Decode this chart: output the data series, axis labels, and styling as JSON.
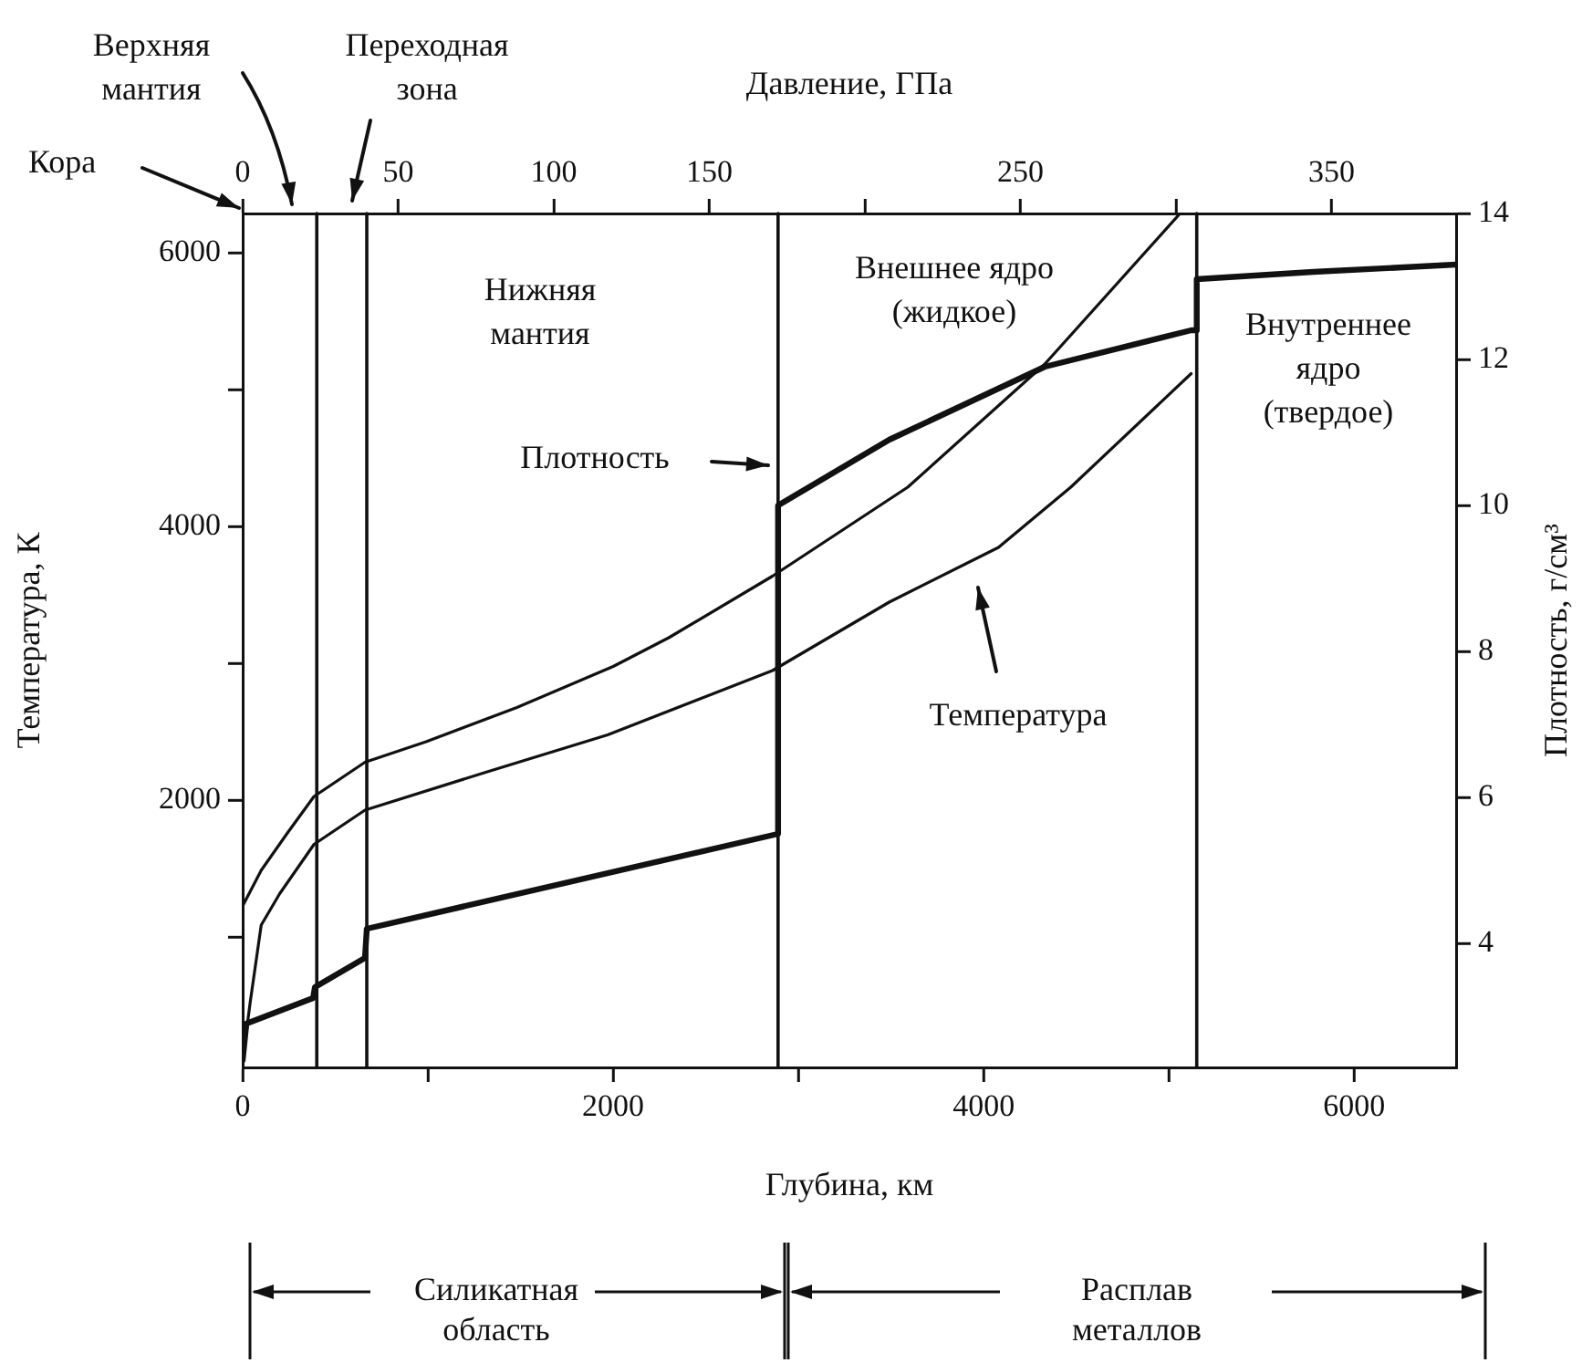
{
  "chart_data": {
    "type": "line",
    "xlabel": "Глубина, км",
    "ylabel": "Температура, К",
    "y2label": "Плотность, г/см³",
    "x2label": "Давление, ГПа",
    "xlim": [
      0,
      6550
    ],
    "xticks": [
      0,
      {
        "value": 1000,
        "label": null
      },
      2000,
      {
        "value": 3000,
        "label": null
      },
      4000,
      {
        "value": 5000,
        "label": null
      },
      6000
    ],
    "x2lim": [
      0,
      390
    ],
    "x2ticks": [
      0,
      50,
      100,
      150,
      {
        "value": 200,
        "label": null
      },
      250,
      {
        "value": 300,
        "label": null
      },
      350
    ],
    "ylim": [
      50,
      6290
    ],
    "yticks": [
      {
        "value": 1000,
        "label": null
      },
      2000,
      {
        "value": 3000,
        "label": null
      },
      4000,
      {
        "value": 5000,
        "label": null
      },
      6000
    ],
    "y2lim": [
      2.3,
      14
    ],
    "y2ticks": [
      4,
      6,
      8,
      10,
      12,
      14
    ],
    "series": [
      {
        "color": "#111111",
        "axis": "y2",
        "x": [
          0,
          20,
          380,
          390,
          660,
          670,
          2890,
          2890,
          3490,
          4330,
          5120,
          5150,
          5150,
          5780,
          6550
        ],
        "values": [
          2.4,
          2.9,
          3.25,
          3.4,
          3.8,
          4.2,
          5.5,
          10.0,
          10.9,
          11.9,
          12.4,
          12.4,
          13.1,
          13.2,
          13.3
        ]
      },
      {
        "color": "#111111",
        "x": [
          0,
          100,
          240,
          385,
          660,
          990,
          1480,
          2000,
          2300,
          2860,
          3590,
          4330,
          5060
        ],
        "values": [
          1230,
          1490,
          1760,
          2030,
          2280,
          2430,
          2680,
          2980,
          3190,
          3640,
          4290,
          5190,
          6290
        ]
      },
      {
        "color": "#111111",
        "x": [
          0,
          40,
          100,
          200,
          385,
          660,
          1320,
          1970,
          2860,
          3490,
          4080,
          4470,
          5120
        ],
        "values": [
          100,
          520,
          1090,
          1320,
          1680,
          1930,
          2210,
          2480,
          2950,
          3450,
          3850,
          4290,
          5120
        ]
      }
    ],
    "ref_lines": [
      {
        "axis": "x",
        "value": 400
      },
      {
        "axis": "x",
        "value": 670
      },
      {
        "axis": "x",
        "value": 2890
      },
      {
        "axis": "x",
        "value": 5150
      }
    ],
    "annotations": [
      "Кора",
      "Верхняя\nмантия",
      "Переходная\nзона",
      "Нижняя\nмантия",
      "Внешнее ядро\n(жидкое)",
      "Внутреннее\nядро\n(твердое)",
      "Плотность",
      "Температура",
      "Силикатная\nобласть",
      "Расплав\nметаллов"
    ],
    "grid": false,
    "legend": false,
    "line_style": "solid",
    "marker": "none"
  }
}
